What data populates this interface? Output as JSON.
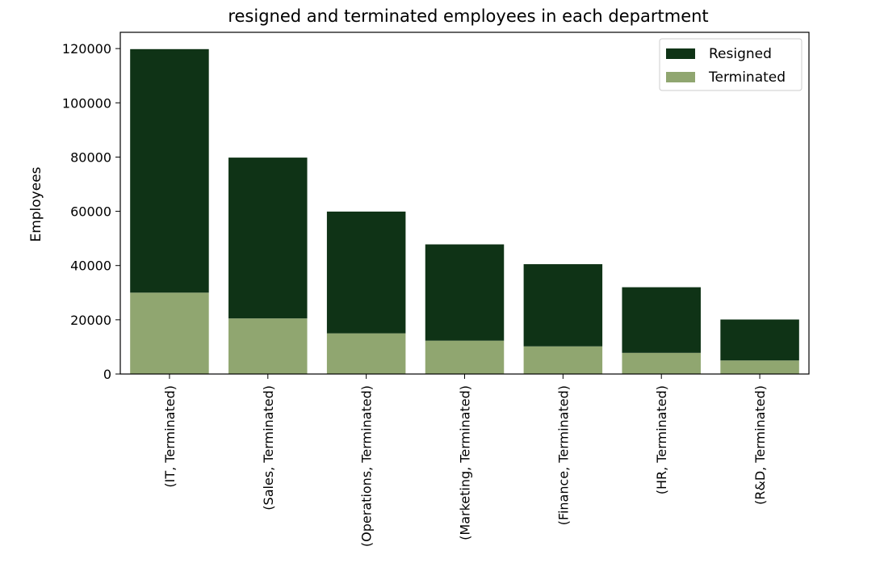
{
  "chart_data": {
    "type": "bar",
    "stacked": true,
    "title": "resigned and terminated employees in each department",
    "xlabel": "",
    "ylabel": "Employees",
    "categories": [
      "(IT, Terminated)",
      "(Sales, Terminated)",
      "(Operations, Terminated)",
      "(Marketing, Terminated)",
      "(Finance, Terminated)",
      "(HR, Terminated)",
      "(R&D, Terminated)"
    ],
    "series": [
      {
        "name": "Terminated",
        "color": "#90a670",
        "values": [
          30000,
          20500,
          15000,
          12300,
          10200,
          7800,
          5000
        ]
      },
      {
        "name": "Resigned",
        "color": "#0f3316",
        "values": [
          89800,
          59300,
          44900,
          35500,
          30300,
          24200,
          15100
        ]
      }
    ],
    "ylim": [
      0,
      126000
    ],
    "yticks": [
      0,
      20000,
      40000,
      60000,
      80000,
      100000,
      120000
    ],
    "legend": {
      "position": "top-right",
      "order": [
        "Resigned",
        "Terminated"
      ]
    },
    "grid": false
  }
}
